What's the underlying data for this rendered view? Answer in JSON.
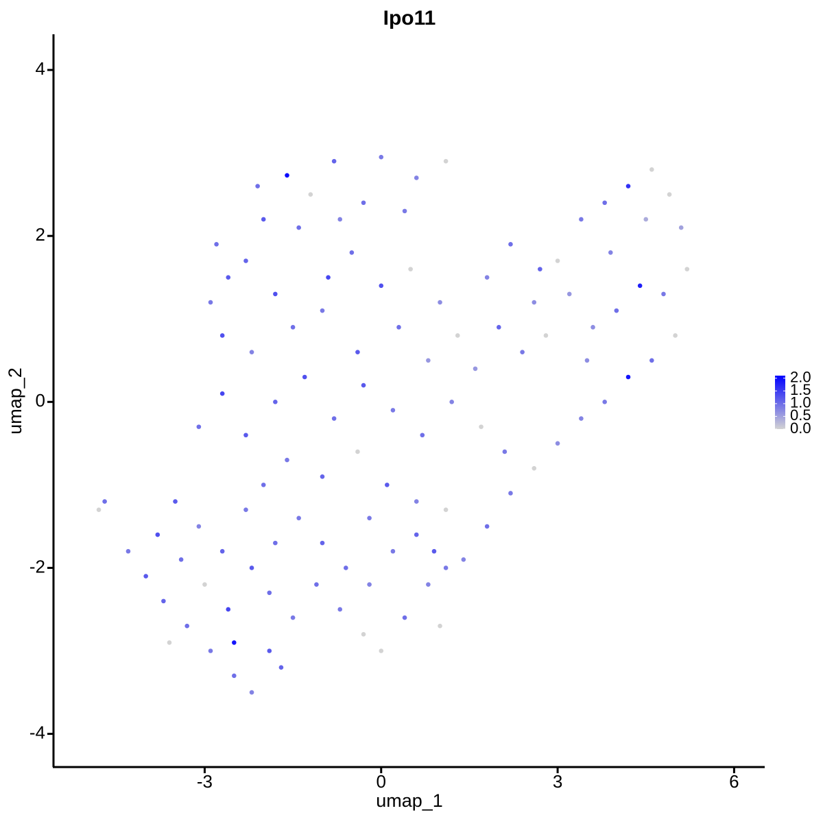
{
  "chart_data": {
    "type": "scatter",
    "title": "Ipo11",
    "x_label": "umap_1",
    "y_label": "umap_2",
    "x": [
      -1.6,
      -2.1,
      -0.8,
      0.0,
      0.6,
      1.1,
      -2.8,
      -2.6,
      -2.3,
      -1.8,
      -1.4,
      -0.9,
      -0.5,
      0.0,
      0.5,
      1.0,
      -2.9,
      -2.7,
      -2.2,
      -1.5,
      -1.0,
      -0.4,
      0.3,
      0.8,
      1.3,
      -1.2,
      -0.3,
      0.4,
      -2.0,
      -0.7,
      1.8,
      2.2,
      2.6,
      3.0,
      3.4,
      3.8,
      4.2,
      4.6,
      4.9,
      5.1,
      5.2,
      4.8,
      4.4,
      4.0,
      3.6,
      3.2,
      2.8,
      2.4,
      2.0,
      1.6,
      5.0,
      4.6,
      4.2,
      3.8,
      3.4,
      3.0,
      2.6,
      2.2,
      1.8,
      1.4,
      4.5,
      3.9,
      2.7,
      3.5,
      -1.8,
      -1.3,
      -0.8,
      -0.3,
      0.2,
      0.7,
      1.2,
      1.7,
      2.1,
      -2.3,
      -1.6,
      -1.0,
      -0.4,
      0.1,
      0.6,
      1.1,
      -2.7,
      -3.1,
      -2.0,
      -0.2,
      -4.7,
      -4.8,
      -4.3,
      -4.0,
      -3.7,
      -3.3,
      -2.9,
      -2.5,
      -2.2,
      -1.9,
      -1.5,
      -1.1,
      -0.7,
      -0.3,
      0.0,
      0.4,
      0.8,
      1.0,
      -3.8,
      -3.4,
      -3.0,
      -2.6,
      -2.2,
      -1.8,
      -1.4,
      -1.0,
      -0.6,
      -0.2,
      0.2,
      0.6,
      -3.5,
      -3.1,
      -2.7,
      -2.3,
      -1.9,
      -2.5,
      -3.6,
      -1.7,
      0.9,
      1.1
    ],
    "y": [
      2.73,
      2.6,
      2.9,
      2.95,
      2.7,
      2.9,
      1.9,
      1.5,
      1.7,
      1.3,
      2.1,
      1.5,
      1.8,
      1.4,
      1.6,
      1.2,
      1.2,
      0.8,
      0.6,
      0.9,
      1.1,
      0.6,
      0.9,
      0.5,
      0.8,
      2.5,
      2.4,
      2.3,
      2.2,
      2.2,
      1.5,
      1.9,
      1.2,
      1.7,
      2.2,
      2.4,
      2.6,
      2.8,
      2.5,
      2.1,
      1.6,
      1.3,
      1.4,
      1.1,
      0.9,
      1.3,
      0.8,
      0.6,
      0.9,
      0.4,
      0.8,
      0.5,
      0.3,
      0.0,
      -0.2,
      -0.5,
      -0.8,
      -1.1,
      -1.5,
      -1.9,
      2.2,
      1.8,
      1.6,
      0.5,
      0.0,
      0.3,
      -0.2,
      0.2,
      -0.1,
      -0.4,
      0.0,
      -0.3,
      -0.6,
      -0.4,
      -0.7,
      -0.9,
      -0.6,
      -1.0,
      -1.2,
      -1.3,
      0.1,
      -0.3,
      -1.0,
      -1.4,
      -1.2,
      -1.3,
      -1.8,
      -2.1,
      -2.4,
      -2.7,
      -3.0,
      -3.3,
      -3.5,
      -3.0,
      -2.6,
      -2.2,
      -2.5,
      -2.8,
      -3.0,
      -2.6,
      -2.2,
      -2.7,
      -1.6,
      -1.9,
      -2.2,
      -2.5,
      -2.0,
      -1.7,
      -1.4,
      -1.7,
      -2.0,
      -2.2,
      -1.8,
      -1.6,
      -1.2,
      -1.5,
      -1.8,
      -1.3,
      -2.3,
      -2.9,
      -2.9,
      -3.2,
      -1.8,
      -2.0
    ],
    "values": [
      2.0,
      1.0,
      1.1,
      0.9,
      0.8,
      0,
      1.0,
      1.2,
      1.1,
      1.3,
      1.0,
      1.4,
      1.0,
      1.3,
      0,
      0.7,
      0.9,
      1.3,
      0.8,
      1.0,
      0.9,
      1.2,
      1.0,
      0.6,
      0,
      0,
      1.0,
      0.9,
      1.2,
      0.8,
      0.8,
      1.0,
      0.7,
      0,
      0.9,
      1.0,
      1.6,
      0,
      0,
      0.5,
      0,
      0.9,
      1.8,
      1.0,
      0.7,
      0.6,
      0,
      0.9,
      1.1,
      0.6,
      0,
      1.0,
      1.9,
      0.9,
      0.8,
      0.7,
      0,
      0.9,
      1.0,
      0.8,
      0.4,
      0.8,
      1.1,
      0.7,
      1.1,
      1.3,
      1.0,
      1.2,
      0.9,
      1.0,
      0.8,
      0,
      0.9,
      1.2,
      0.9,
      1.1,
      0,
      1.2,
      0.8,
      0,
      1.4,
      1.0,
      1.0,
      0.9,
      1.0,
      0,
      0.9,
      1.2,
      1.1,
      1.0,
      0.9,
      1.0,
      0.8,
      1.2,
      0.9,
      1.0,
      0.9,
      0,
      0,
      1.0,
      0.8,
      0,
      1.3,
      1.0,
      0,
      1.4,
      1.2,
      1.0,
      0.9,
      1.1,
      1.0,
      0.8,
      0.9,
      1.1,
      1.2,
      0.8,
      1.1,
      0.9,
      1.0,
      1.9,
      0,
      1.1,
      1.2,
      0.9
    ],
    "color_low": "#d3d3d3",
    "color_high": "#0000ff",
    "xlim": [
      -5.57,
      6.52
    ],
    "xticks": [
      -3,
      0,
      3,
      6
    ],
    "ylim": [
      -4.4,
      4.43
    ],
    "yticks": [
      -4,
      -2,
      0,
      2,
      4
    ],
    "colorbar_lim": [
      0,
      2.1
    ],
    "colorbar_ticks": [
      {
        "value": 0,
        "label": "0.0"
      },
      0.5,
      {
        "value": 1,
        "label": "1.0"
      },
      1.5,
      {
        "value": 2,
        "label": "2.0"
      }
    ]
  }
}
